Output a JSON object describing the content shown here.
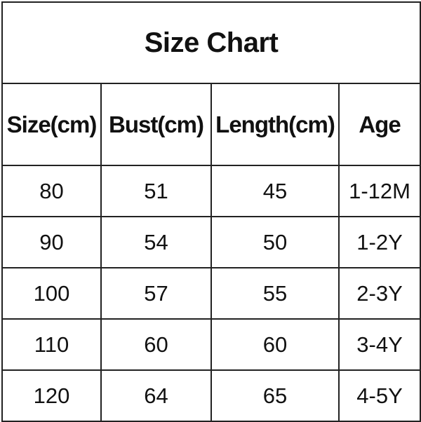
{
  "title": "Size Chart",
  "columns": [
    "Size(cm)",
    "Bust(cm)",
    "Length(cm)",
    "Age"
  ],
  "rows": [
    [
      "80",
      "51",
      "45",
      "1-12M"
    ],
    [
      "90",
      "54",
      "50",
      "1-2Y"
    ],
    [
      "100",
      "57",
      "55",
      "2-3Y"
    ],
    [
      "110",
      "60",
      "60",
      "3-4Y"
    ],
    [
      "120",
      "64",
      "65",
      "4-5Y"
    ]
  ]
}
